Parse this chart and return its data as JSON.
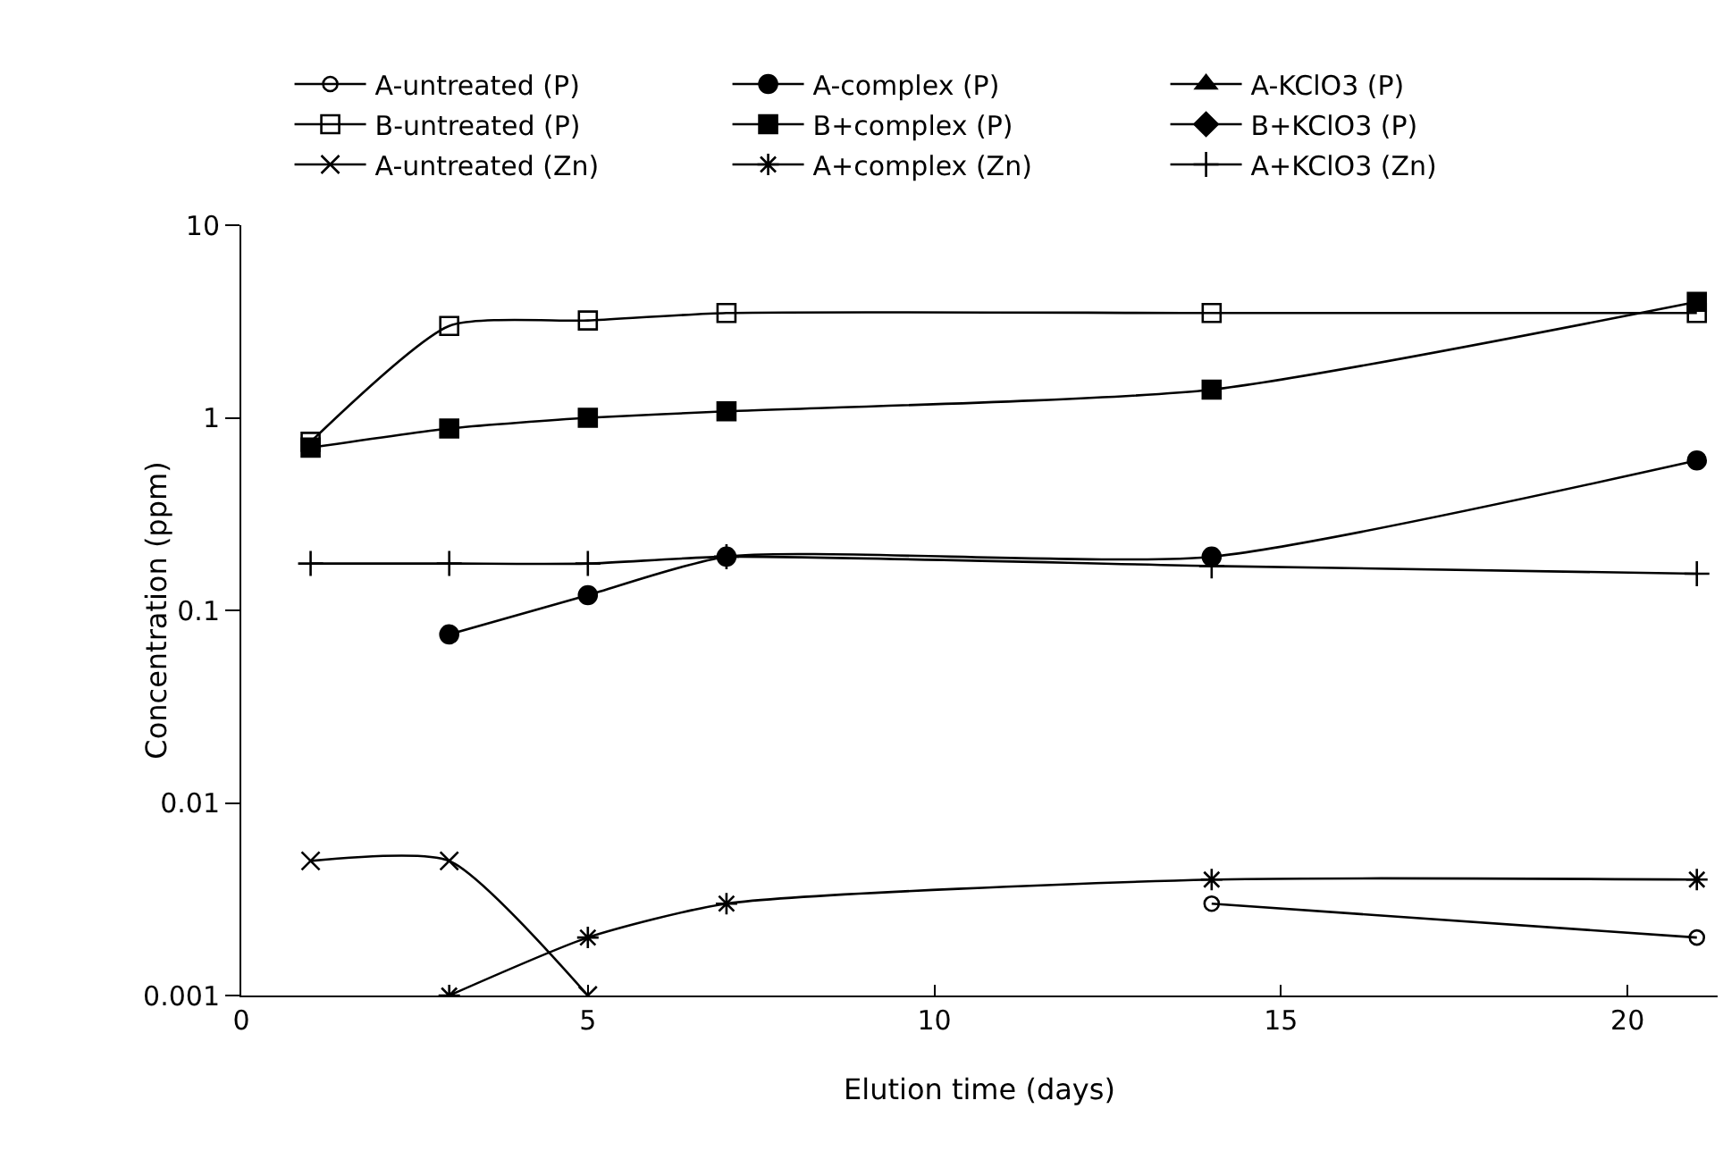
{
  "chart_data": {
    "type": "line",
    "xlabel": "Elution time (days)",
    "ylabel": "Concentration (ppm)",
    "log": "y",
    "xlim": [
      0,
      21.3
    ],
    "xticks": [
      0,
      5,
      10,
      15,
      20
    ],
    "ylim": [
      0.001,
      10
    ],
    "yticks": [
      0.001,
      0.01,
      0.1,
      1,
      10
    ],
    "grid": false,
    "legend": "top",
    "line_style": "solid",
    "series": [
      {
        "name": "A-untreated (P)",
        "color": "#000000",
        "marker": "circle-open",
        "x": [
          14,
          21
        ],
        "values": [
          0.003,
          0.002
        ]
      },
      {
        "name": "A-complex (P)",
        "color": "#000000",
        "marker": "circle",
        "x": [
          3,
          5,
          7,
          14,
          21
        ],
        "values": [
          0.075,
          0.12,
          0.19,
          0.19,
          0.6
        ]
      },
      {
        "name": "A-KClO3 (P)",
        "color": "#000000",
        "marker": "triangle"
      },
      {
        "name": "B-untreated (P)",
        "color": "#000000",
        "marker": "square-open",
        "x": [
          1,
          3,
          5,
          7,
          14,
          21
        ],
        "values": [
          0.75,
          3.0,
          3.2,
          3.5,
          3.5,
          3.5
        ]
      },
      {
        "name": "B+complex (P)",
        "color": "#000000",
        "marker": "square",
        "x": [
          1,
          3,
          5,
          7,
          14,
          21
        ],
        "values": [
          0.7,
          0.88,
          1.0,
          1.08,
          1.4,
          4.0
        ]
      },
      {
        "name": "B+KClO3 (P)",
        "color": "#000000",
        "marker": "diamond"
      },
      {
        "name": "A-untreated (Zn)",
        "color": "#000000",
        "marker": "x",
        "x": [
          1,
          3,
          5
        ],
        "values": [
          0.005,
          0.005,
          0.001
        ]
      },
      {
        "name": "A+complex (Zn)",
        "color": "#000000",
        "marker": "cross",
        "x": [
          3,
          5,
          7,
          14,
          21
        ],
        "values": [
          0.001,
          0.002,
          0.003,
          0.004,
          0.004
        ]
      },
      {
        "name": "A+KClO3 (Zn)",
        "color": "#000000",
        "marker": "plus",
        "x": [
          1,
          3,
          5,
          7,
          14,
          21
        ],
        "values": [
          0.175,
          0.175,
          0.175,
          0.19,
          0.17,
          0.155
        ]
      }
    ]
  }
}
